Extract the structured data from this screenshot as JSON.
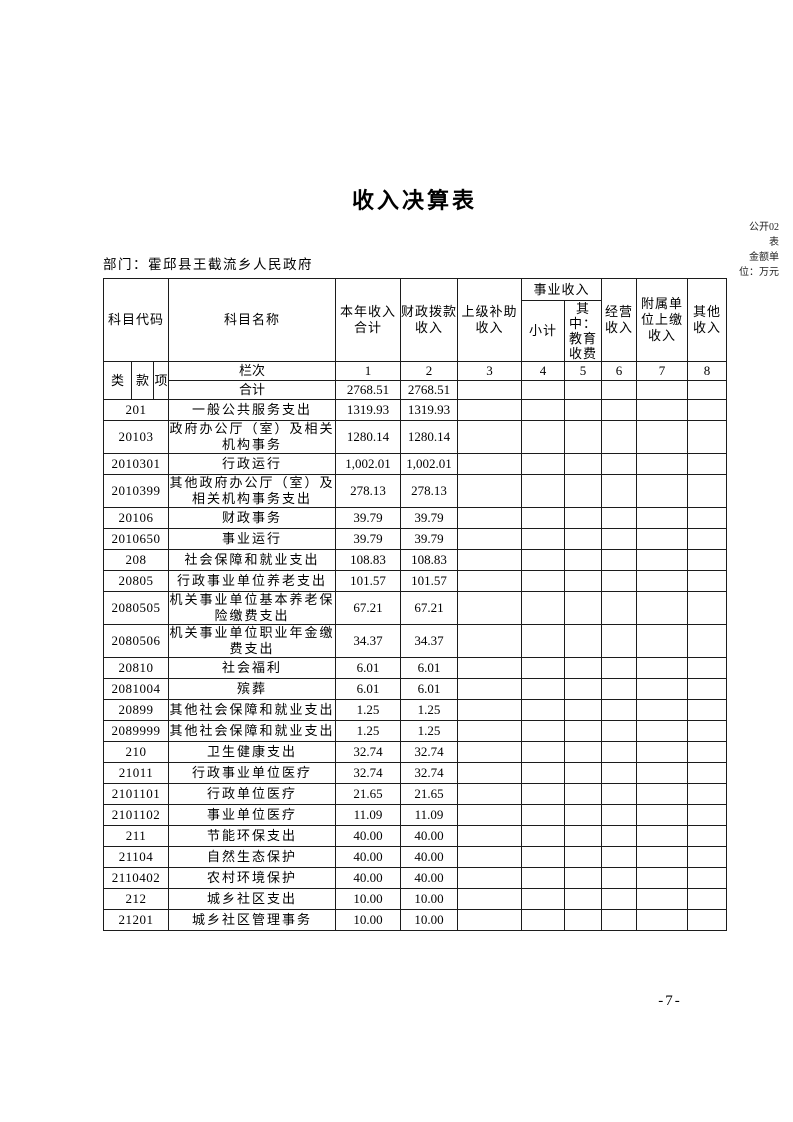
{
  "page": {
    "title": "收入决算表",
    "corner_lines": [
      "公开02",
      "表",
      "金额单",
      "位：万元"
    ],
    "department_label": "部门：霍邱县王截流乡人民政府",
    "page_number": "-7-"
  },
  "table": {
    "headers": {
      "subject_code": "科目代码",
      "code_class": "类",
      "code_section": "款",
      "code_item": "项",
      "subject_name": "科目名称",
      "col_total": "本年收入合计",
      "col_fiscal": "财政拨款收入",
      "col_subsidy": "上级补助收入",
      "group_business": "事业收入",
      "col_business_subtotal": "小计",
      "col_education": "其中：教育收费",
      "col_operating": "经营收入",
      "col_affiliated": "附属单位上缴收入",
      "col_other": "其他收入",
      "lanci_label": "栏次",
      "col_numbers": [
        "1",
        "2",
        "3",
        "4",
        "5",
        "6",
        "7",
        "8"
      ]
    },
    "total_row": {
      "label": "合计",
      "total": "2768.51",
      "fiscal": "2768.51"
    },
    "rows": [
      {
        "code": "201",
        "name": "一般公共服务支出",
        "total": "1319.93",
        "fiscal": "1319.93"
      },
      {
        "code": "20103",
        "name": "政府办公厅（室）及相关机构事务",
        "total": "1280.14",
        "fiscal": "1280.14"
      },
      {
        "code": "2010301",
        "name": "行政运行",
        "total": "1,002.01",
        "fiscal": "1,002.01"
      },
      {
        "code": "2010399",
        "name": "其他政府办公厅（室）及相关机构事务支出",
        "total": "278.13",
        "fiscal": "278.13"
      },
      {
        "code": "20106",
        "name": "财政事务",
        "total": "39.79",
        "fiscal": "39.79"
      },
      {
        "code": "2010650",
        "name": "事业运行",
        "total": "39.79",
        "fiscal": "39.79"
      },
      {
        "code": "208",
        "name": "社会保障和就业支出",
        "total": "108.83",
        "fiscal": "108.83"
      },
      {
        "code": "20805",
        "name": "行政事业单位养老支出",
        "total": "101.57",
        "fiscal": "101.57"
      },
      {
        "code": "2080505",
        "name": "机关事业单位基本养老保险缴费支出",
        "total": "67.21",
        "fiscal": "67.21"
      },
      {
        "code": "2080506",
        "name": "机关事业单位职业年金缴费支出",
        "total": "34.37",
        "fiscal": "34.37"
      },
      {
        "code": "20810",
        "name": "社会福利",
        "total": "6.01",
        "fiscal": "6.01"
      },
      {
        "code": "2081004",
        "name": "殡葬",
        "total": "6.01",
        "fiscal": "6.01"
      },
      {
        "code": "20899",
        "name": "其他社会保障和就业支出",
        "total": "1.25",
        "fiscal": "1.25"
      },
      {
        "code": "2089999",
        "name": "其他社会保障和就业支出",
        "total": "1.25",
        "fiscal": "1.25"
      },
      {
        "code": "210",
        "name": "卫生健康支出",
        "total": "32.74",
        "fiscal": "32.74"
      },
      {
        "code": "21011",
        "name": "行政事业单位医疗",
        "total": "32.74",
        "fiscal": "32.74"
      },
      {
        "code": "2101101",
        "name": "行政单位医疗",
        "total": "21.65",
        "fiscal": "21.65"
      },
      {
        "code": "2101102",
        "name": "事业单位医疗",
        "total": "11.09",
        "fiscal": "11.09"
      },
      {
        "code": "211",
        "name": "节能环保支出",
        "total": "40.00",
        "fiscal": "40.00"
      },
      {
        "code": "21104",
        "name": "自然生态保护",
        "total": "40.00",
        "fiscal": "40.00"
      },
      {
        "code": "2110402",
        "name": "农村环境保护",
        "total": "40.00",
        "fiscal": "40.00"
      },
      {
        "code": "212",
        "name": "城乡社区支出",
        "total": "10.00",
        "fiscal": "10.00"
      },
      {
        "code": "21201",
        "name": "城乡社区管理事务",
        "total": "10.00",
        "fiscal": "10.00"
      }
    ]
  }
}
